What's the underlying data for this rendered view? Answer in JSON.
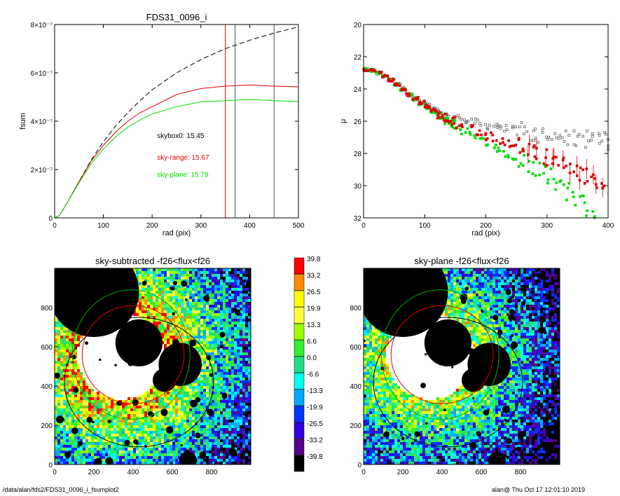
{
  "footer": {
    "left": "/data/alan/fds2/FDS31_0096_i_fsumplot2",
    "right": "alan@  Thu Oct 17 12:01:10 2019"
  },
  "chart_data": [
    {
      "id": "fsum",
      "type": "line",
      "title": "FDS31_0096_i",
      "xlabel": "rad (pix)",
      "ylabel": "fsum",
      "xlim": [
        0,
        500
      ],
      "ylim": [
        0,
        8e-07
      ],
      "xticks": [
        0,
        100,
        200,
        300,
        400,
        500
      ],
      "yticks": [
        {
          "value": 0,
          "label": "0"
        },
        {
          "value": 2e-07,
          "label": "2×10⁻⁷"
        },
        {
          "value": 4e-07,
          "label": "4×10⁻⁷"
        },
        {
          "value": 6e-07,
          "label": "6×10⁻⁷"
        },
        {
          "value": 8e-07,
          "label": "8×10⁻⁷"
        }
      ],
      "vlines": [
        {
          "x": 350,
          "color": "#e00000"
        },
        {
          "x": 370,
          "color": "#555555"
        },
        {
          "x": 450,
          "color": "#555555"
        }
      ],
      "annotations": [
        {
          "text": "skybox0: 15.45",
          "color": "#000000",
          "x": 210,
          "y": 3.3e-07
        },
        {
          "text": "sky-range: 15.67",
          "color": "#e00000",
          "x": 210,
          "y": 2.4e-07
        },
        {
          "text": "sky-plane: 15.79",
          "color": "#00dd00",
          "x": 210,
          "y": 1.7e-07
        }
      ],
      "series": [
        {
          "name": "skybox0",
          "color": "#000000",
          "dash": true,
          "x": [
            0,
            10,
            25,
            50,
            75,
            100,
            125,
            150,
            175,
            200,
            250,
            300,
            350,
            400,
            450,
            500
          ],
          "y": [
            0,
            1e-08,
            6e-08,
            1.5e-07,
            2.4e-07,
            3.15e-07,
            3.8e-07,
            4.35e-07,
            4.85e-07,
            5.3e-07,
            6e-07,
            6.55e-07,
            7e-07,
            7.35e-07,
            7.65e-07,
            7.9e-07
          ]
        },
        {
          "name": "sky-range",
          "color": "#e00000",
          "dash": false,
          "x": [
            0,
            10,
            25,
            50,
            75,
            100,
            125,
            150,
            175,
            200,
            250,
            300,
            350,
            400,
            450,
            500
          ],
          "y": [
            0,
            1e-08,
            6e-08,
            1.5e-07,
            2.35e-07,
            3e-07,
            3.55e-07,
            4e-07,
            4.35e-07,
            4.6e-07,
            5.1e-07,
            5.35e-07,
            5.45e-07,
            5.5e-07,
            5.45e-07,
            5.42e-07
          ]
        },
        {
          "name": "sky-plane",
          "color": "#00dd00",
          "dash": false,
          "x": [
            0,
            10,
            25,
            50,
            75,
            100,
            125,
            150,
            175,
            200,
            250,
            300,
            350,
            400,
            450,
            500
          ],
          "y": [
            0,
            1e-08,
            6e-08,
            1.45e-07,
            2.25e-07,
            2.85e-07,
            3.35e-07,
            3.75e-07,
            4.05e-07,
            4.3e-07,
            4.6e-07,
            4.8e-07,
            4.85e-07,
            4.9e-07,
            4.85e-07,
            4.82e-07
          ]
        }
      ]
    },
    {
      "id": "mu",
      "type": "scatter",
      "title": "",
      "xlabel": "rad (pix)",
      "ylabel": "μ",
      "xlim": [
        0,
        400
      ],
      "ylim": [
        32,
        20
      ],
      "xticks": [
        0,
        100,
        200,
        300,
        400
      ],
      "yticks": [
        20,
        22,
        24,
        26,
        28,
        30,
        32
      ],
      "series": [
        {
          "name": "skybox0",
          "color": "#555555",
          "x": [
            0,
            10,
            20,
            30,
            40,
            50,
            60,
            70,
            80,
            90,
            100,
            110,
            120,
            130,
            140,
            150,
            160,
            170,
            180,
            190,
            200,
            210,
            220,
            230,
            240,
            250,
            260,
            270,
            280,
            290,
            300,
            310,
            320,
            330,
            340,
            350,
            360,
            370,
            380,
            390,
            400
          ],
          "y": [
            22.8,
            22.85,
            23.0,
            23.2,
            23.45,
            23.7,
            24.0,
            24.3,
            24.55,
            24.8,
            25.0,
            25.25,
            25.45,
            25.6,
            25.75,
            25.85,
            25.95,
            26.05,
            26.1,
            26.2,
            26.3,
            26.35,
            26.45,
            26.5,
            26.55,
            26.6,
            26.65,
            26.7,
            26.8,
            26.85,
            26.9,
            26.95,
            27.0,
            27.0,
            27.05,
            27.1,
            27.1,
            27.15,
            27.2,
            27.25,
            27.35
          ]
        },
        {
          "name": "sky-range",
          "color": "#e00000",
          "x": [
            0,
            10,
            20,
            30,
            40,
            50,
            60,
            70,
            80,
            90,
            100,
            110,
            120,
            130,
            140,
            150,
            160,
            170,
            180,
            190,
            200,
            210,
            220,
            230,
            240,
            250,
            260,
            270,
            280,
            290,
            300,
            310,
            320,
            330,
            340,
            350,
            360,
            370,
            380,
            390
          ],
          "y": [
            22.8,
            22.85,
            23.0,
            23.2,
            23.45,
            23.75,
            24.05,
            24.35,
            24.6,
            24.85,
            25.1,
            25.35,
            25.6,
            25.8,
            26.0,
            26.2,
            26.35,
            26.5,
            26.65,
            26.8,
            26.95,
            27.1,
            27.2,
            27.35,
            27.5,
            27.6,
            27.75,
            27.9,
            28.0,
            28.2,
            28.35,
            28.5,
            28.7,
            28.9,
            29.1,
            29.3,
            29.5,
            29.8,
            30.1,
            30.5
          ]
        },
        {
          "name": "sky-plane",
          "color": "#00dd00",
          "x": [
            0,
            10,
            20,
            30,
            40,
            50,
            60,
            70,
            80,
            90,
            100,
            110,
            120,
            130,
            140,
            150,
            160,
            170,
            180,
            190,
            200,
            210,
            220,
            230,
            240,
            250,
            260,
            270,
            280,
            290,
            300,
            310,
            320,
            330,
            340,
            350,
            360,
            370
          ],
          "y": [
            22.8,
            22.85,
            23.0,
            23.2,
            23.45,
            23.75,
            24.05,
            24.35,
            24.65,
            24.9,
            25.15,
            25.45,
            25.7,
            25.95,
            26.2,
            26.4,
            26.65,
            26.85,
            27.05,
            27.25,
            27.45,
            27.65,
            27.85,
            28.05,
            28.25,
            28.4,
            28.6,
            28.8,
            29.0,
            29.2,
            29.5,
            29.8,
            30.1,
            30.4,
            30.8,
            31.1,
            31.4,
            31.7
          ]
        }
      ]
    },
    {
      "id": "skysub",
      "type": "heatmap",
      "title": "sky-subtracted -f26<flux<f26",
      "xlim": [
        0,
        1000
      ],
      "ylim": [
        0,
        1000
      ],
      "xticks": [
        0,
        200,
        400,
        600,
        800
      ],
      "yticks": [
        0,
        200,
        400,
        600,
        800
      ],
      "level": "high"
    },
    {
      "id": "skyplane",
      "type": "heatmap",
      "title": "sky-plane -f26<flux<f26",
      "xlim": [
        0,
        1000
      ],
      "ylim": [
        0,
        1000
      ],
      "xticks": [
        0,
        200,
        400,
        600,
        800
      ],
      "yticks": [
        0,
        200,
        400,
        600,
        800
      ],
      "level": "low"
    }
  ],
  "colorbar": {
    "levels": [
      {
        "label": "39.8",
        "color": "#ff0000"
      },
      {
        "label": "33.2",
        "color": "#ff8c00"
      },
      {
        "label": "26.5",
        "color": "#ffff00"
      },
      {
        "label": "19.9",
        "color": "#ffff40"
      },
      {
        "label": "13.3",
        "color": "#99ff00"
      },
      {
        "label": "6.6",
        "color": "#33ee33"
      },
      {
        "label": "0.0",
        "color": "#22dd88"
      },
      {
        "label": "-6.6",
        "color": "#00ffee"
      },
      {
        "label": "-13.3",
        "color": "#00aaff"
      },
      {
        "label": "-19.9",
        "color": "#0033ff"
      },
      {
        "label": "-26.5",
        "color": "#3300dd"
      },
      {
        "label": "-33.2",
        "color": "#550088"
      },
      {
        "label": "-39.8",
        "color": "#000000"
      }
    ]
  }
}
